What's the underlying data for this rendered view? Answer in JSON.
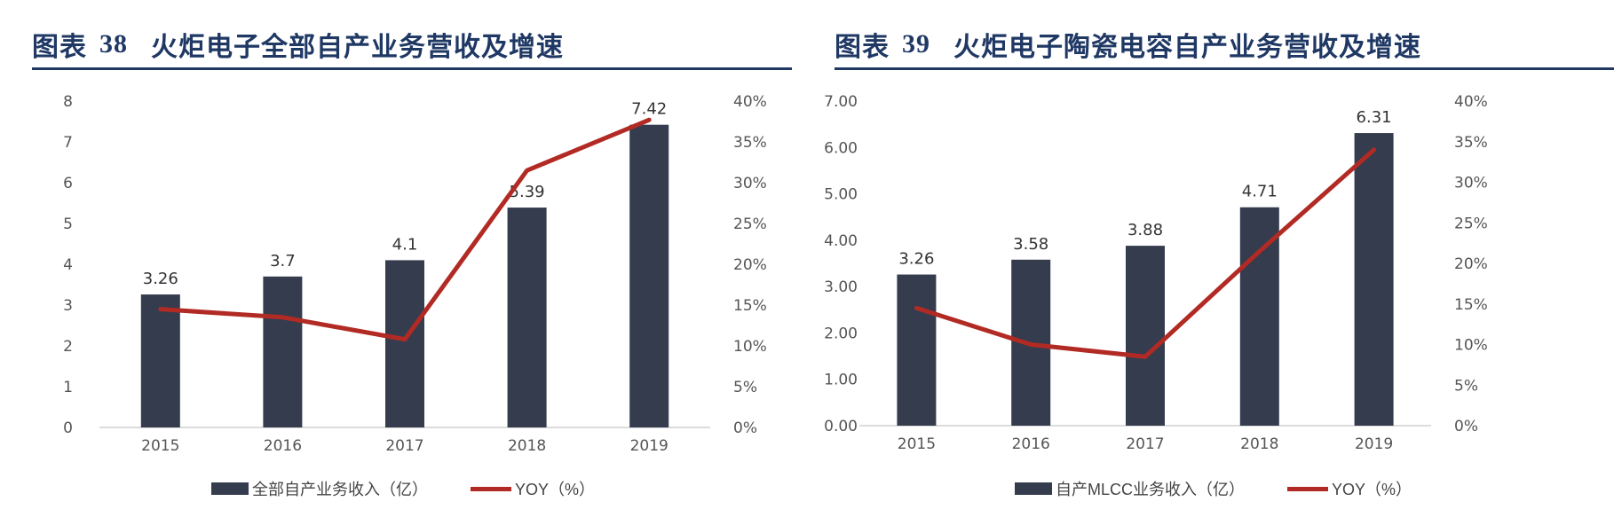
{
  "figures": [
    {
      "label": "图表",
      "number": "38",
      "title": "火炬电子全部自产业务营收及增速",
      "legend": {
        "bar": "全部自产业务收入（亿）",
        "line": "YOY（%）"
      }
    },
    {
      "label": "图表",
      "number": "39",
      "title": "火炬电子陶瓷电容自产业务营收及增速",
      "legend": {
        "bar": "自产MLCC业务收入（亿）",
        "line": "YOY（%）"
      }
    }
  ],
  "colors": {
    "bar": "#343c4e",
    "line": "#b22a24",
    "header": "#1f3864"
  },
  "chart_data": [
    {
      "type": "bar",
      "categories": [
        "2015",
        "2016",
        "2017",
        "2018",
        "2019"
      ],
      "series": [
        {
          "name": "全部自产业务收入（亿）",
          "type": "bar",
          "axis": "left",
          "values": [
            3.26,
            3.7,
            4.1,
            5.39,
            7.42
          ],
          "labels": [
            "3.26",
            "3.7",
            "4.1",
            "5.39",
            "7.42"
          ]
        },
        {
          "name": "YOY（%）",
          "type": "line",
          "axis": "right",
          "values": [
            14.5,
            13.5,
            10.8,
            31.5,
            37.7
          ]
        }
      ],
      "y_left": {
        "min": 0,
        "max": 8,
        "ticks": [
          "0",
          "1",
          "2",
          "3",
          "4",
          "5",
          "6",
          "7",
          "8"
        ]
      },
      "y_right": {
        "min": 0,
        "max": 40,
        "ticks": [
          "0%",
          "5%",
          "10%",
          "15%",
          "20%",
          "25%",
          "30%",
          "35%",
          "40%"
        ]
      },
      "grid": false,
      "legend_position": "bottom"
    },
    {
      "type": "bar",
      "categories": [
        "2015",
        "2016",
        "2017",
        "2018",
        "2019"
      ],
      "series": [
        {
          "name": "自产MLCC业务收入（亿）",
          "type": "bar",
          "axis": "left",
          "values": [
            3.26,
            3.58,
            3.88,
            4.71,
            6.31
          ],
          "labels": [
            "3.26",
            "3.58",
            "3.88",
            "4.71",
            "6.31"
          ]
        },
        {
          "name": "YOY（%）",
          "type": "line",
          "axis": "right",
          "values": [
            14.5,
            10.0,
            8.5,
            21.5,
            34.0
          ]
        }
      ],
      "y_left": {
        "min": 0,
        "max": 7,
        "ticks": [
          "0.00",
          "1.00",
          "2.00",
          "3.00",
          "4.00",
          "5.00",
          "6.00",
          "7.00"
        ]
      },
      "y_right": {
        "min": 0,
        "max": 40,
        "ticks": [
          "0%",
          "5%",
          "10%",
          "15%",
          "20%",
          "25%",
          "30%",
          "35%",
          "40%"
        ]
      },
      "grid": false,
      "legend_position": "bottom"
    }
  ]
}
